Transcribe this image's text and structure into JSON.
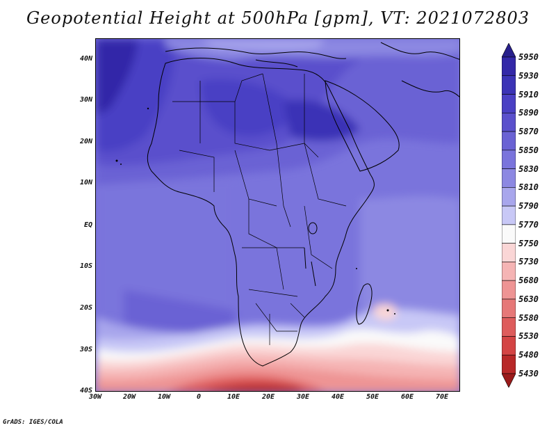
{
  "title": "Geopotential Height at 500hPa [gpm], VT: 2021072803",
  "credit": "GrADS: IGES/COLA",
  "y_ticks": [
    "40N",
    "30N",
    "20N",
    "10N",
    "EQ",
    "10S",
    "20S",
    "30S",
    "40S"
  ],
  "x_ticks": [
    "30W",
    "20W",
    "10W",
    "0",
    "10E",
    "20E",
    "30E",
    "40E",
    "50E",
    "60E",
    "70E"
  ],
  "colorbar": {
    "labels": [
      "5950",
      "5930",
      "5910",
      "5890",
      "5870",
      "5850",
      "5830",
      "5810",
      "5790",
      "5770",
      "5750",
      "5730",
      "5680",
      "5630",
      "5580",
      "5530",
      "5480",
      "5430"
    ],
    "colors": [
      "#28208c",
      "#3328a8",
      "#3b33b6",
      "#4a40c4",
      "#5a50cc",
      "#6a62d4",
      "#7a74dc",
      "#8c88e2",
      "#a8a6ec",
      "#c8c8f6",
      "#fafafa",
      "#fad6d6",
      "#f5b4b4",
      "#ee9494",
      "#e67878",
      "#de5c5c",
      "#d44444",
      "#b82828",
      "#9a1a1a"
    ]
  },
  "chart_data": {
    "type": "heatmap",
    "title": "Geopotential Height at 500hPa [gpm], VT: 2021072803",
    "variable": "Geopotential Height at 500hPa",
    "unit": "gpm",
    "valid_time": "2021072803",
    "lon_range": [
      "30W",
      "75E"
    ],
    "lat_range": [
      "40S",
      "45N"
    ],
    "x_ticks": [
      "30W",
      "20W",
      "10W",
      "0",
      "10E",
      "20E",
      "30E",
      "40E",
      "50E",
      "60E",
      "70E"
    ],
    "y_ticks": [
      "40N",
      "30N",
      "20N",
      "10N",
      "EQ",
      "10S",
      "20S",
      "30S",
      "40S"
    ],
    "levels": [
      5430,
      5480,
      5530,
      5580,
      5630,
      5680,
      5730,
      5750,
      5770,
      5790,
      5810,
      5830,
      5850,
      5870,
      5890,
      5910,
      5930,
      5950
    ]
  }
}
